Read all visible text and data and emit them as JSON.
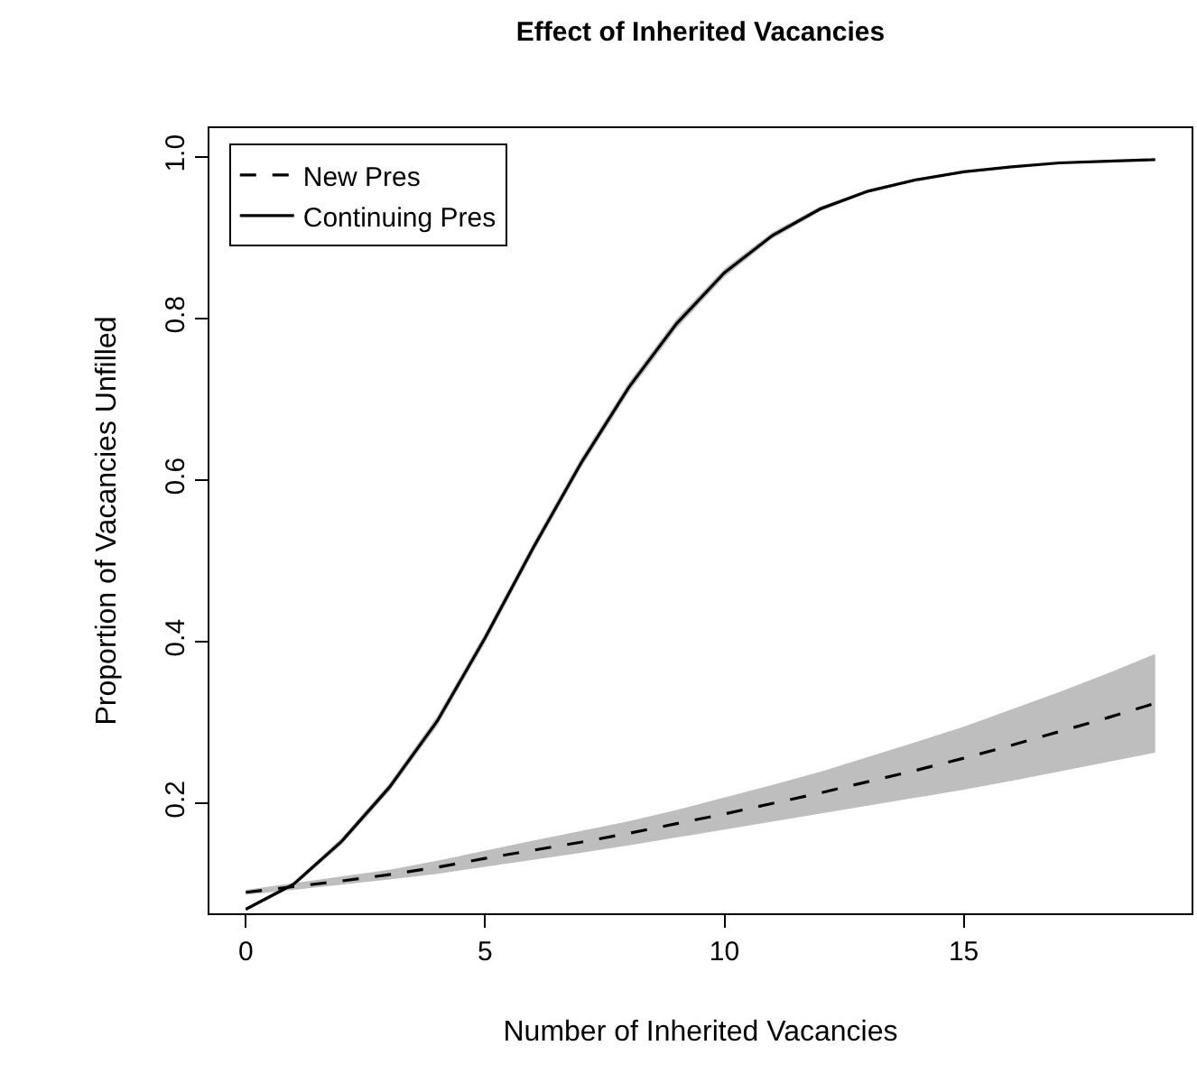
{
  "chart_data": {
    "type": "line",
    "title": "Effect of Inherited Vacancies",
    "xlabel": "Number of Inherited Vacancies",
    "ylabel": "Proportion of Vacancies Unfilled",
    "x": [
      0,
      1,
      2,
      3,
      4,
      5,
      6,
      7,
      8,
      9,
      10,
      11,
      12,
      13,
      14,
      15,
      16,
      17,
      18,
      19
    ],
    "xlim": [
      -0.76,
      19.76
    ],
    "xticks": [
      0,
      5,
      10,
      15
    ],
    "ylim": [
      0.064,
      1.036
    ],
    "yticks": [
      0.2,
      0.4,
      0.6,
      0.8,
      {
        "value": 1.0,
        "label": "1.0"
      }
    ],
    "legend": "top left",
    "marker": "none",
    "series": [
      {
        "name": "New Pres",
        "color": "#000000",
        "line_style": "dashed",
        "values": [
          0.09,
          0.097,
          0.104,
          0.112,
          0.121,
          0.132,
          0.142,
          0.152,
          0.163,
          0.175,
          0.187,
          0.2,
          0.213,
          0.227,
          0.241,
          0.256,
          0.272,
          0.289,
          0.306,
          0.324
        ],
        "lower": [
          0.087,
          0.093,
          0.099,
          0.106,
          0.113,
          0.122,
          0.13,
          0.139,
          0.148,
          0.157,
          0.167,
          0.177,
          0.187,
          0.197,
          0.207,
          0.217,
          0.228,
          0.24,
          0.251,
          0.263
        ],
        "upper": [
          0.093,
          0.101,
          0.109,
          0.118,
          0.129,
          0.142,
          0.154,
          0.166,
          0.178,
          0.192,
          0.207,
          0.223,
          0.239,
          0.257,
          0.276,
          0.295,
          0.316,
          0.338,
          0.361,
          0.385
        ]
      },
      {
        "name": "Continuing Pres",
        "color": "#000000",
        "line_style": "solid",
        "values": [
          0.069,
          0.1,
          0.153,
          0.22,
          0.302,
          0.405,
          0.516,
          0.621,
          0.715,
          0.794,
          0.857,
          0.903,
          0.936,
          0.958,
          0.972,
          0.982,
          0.988,
          0.993,
          0.995,
          0.997
        ],
        "lower": [
          0.067,
          0.097,
          0.149,
          0.215,
          0.296,
          0.399,
          0.51,
          0.615,
          0.709,
          0.788,
          0.852,
          0.899,
          0.933,
          0.956,
          0.97,
          0.981,
          0.987,
          0.992,
          0.994,
          0.996
        ],
        "upper": [
          0.071,
          0.103,
          0.157,
          0.225,
          0.308,
          0.411,
          0.522,
          0.627,
          0.721,
          0.8,
          0.862,
          0.907,
          0.939,
          0.96,
          0.974,
          0.983,
          0.989,
          0.994,
          0.996,
          0.998
        ]
      }
    ]
  }
}
